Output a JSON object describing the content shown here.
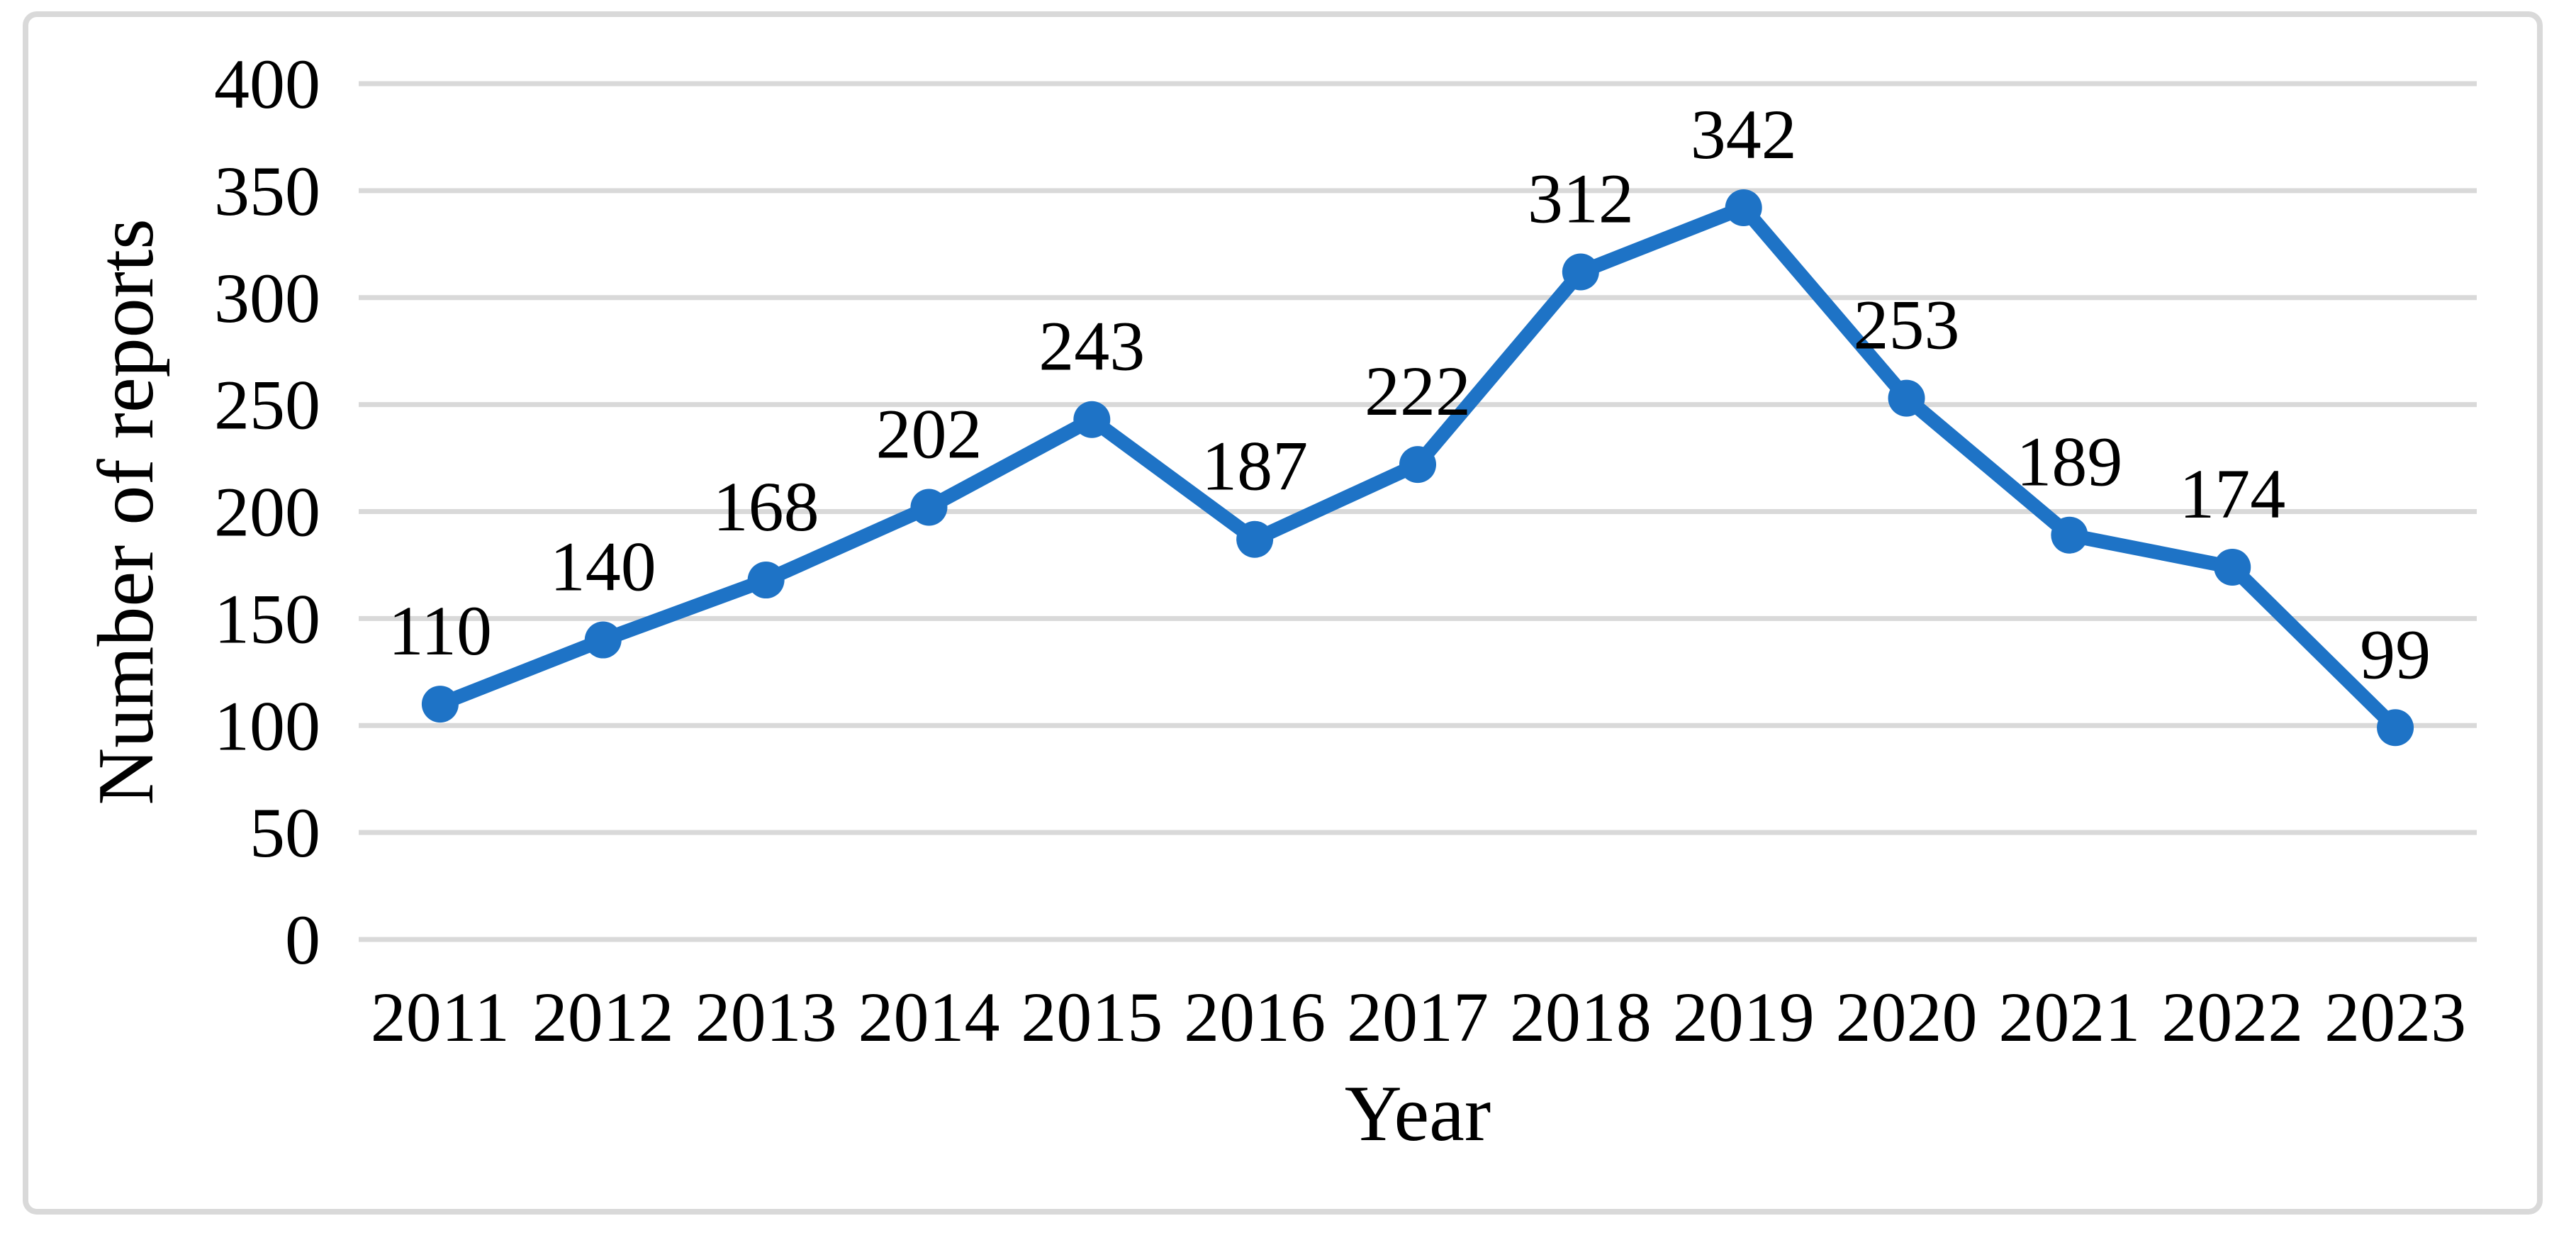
{
  "chart_data": {
    "type": "line",
    "title": "",
    "categories": [
      "2011",
      "2012",
      "2013",
      "2014",
      "2015",
      "2016",
      "2017",
      "2018",
      "2019",
      "2020",
      "2021",
      "2022",
      "2023"
    ],
    "values": [
      110,
      140,
      168,
      202,
      243,
      187,
      222,
      312,
      342,
      253,
      189,
      174,
      99
    ],
    "data_labels_visible": true,
    "xlabel": "Year",
    "ylabel": "Number of reports",
    "ylim": [
      0,
      400
    ],
    "yticks": [
      0,
      50,
      100,
      150,
      200,
      250,
      300,
      350,
      400
    ],
    "grid": true,
    "legend_position": "none",
    "marker_shape": "circle",
    "colors": {
      "line": "#1E73C6",
      "marker": "#1E73C6",
      "gridline": "#D9D9D9",
      "frame_border": "#D9D9D9",
      "text": "#000000",
      "background": "#FFFFFF"
    }
  }
}
